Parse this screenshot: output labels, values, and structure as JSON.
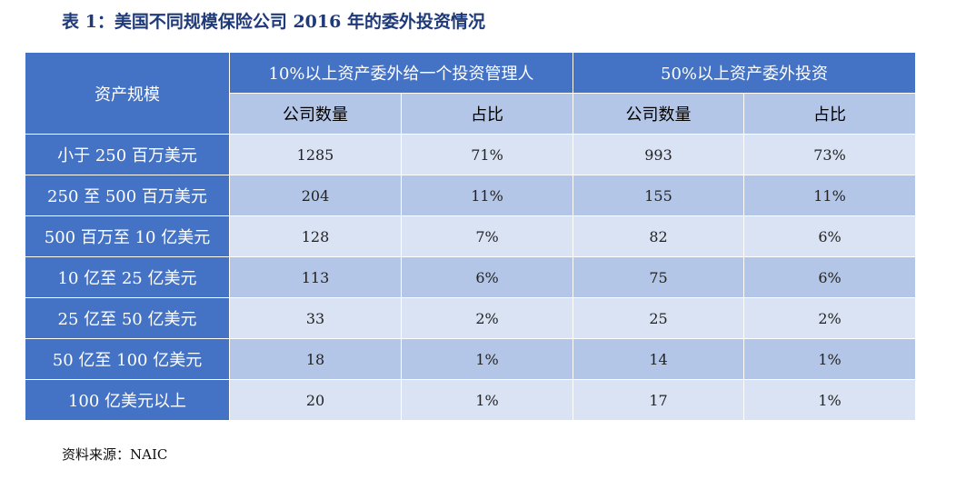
{
  "title": "表 1：美国不同规模保险公司 2016 年的委外投资情况",
  "table": {
    "row_header_label": "资产规模",
    "groups": [
      "10%以上资产委外给一个投资管理人",
      "50%以上资产委外投资"
    ],
    "subheaders": [
      "公司数量",
      "占比",
      "公司数量",
      "占比"
    ],
    "rows": [
      {
        "label": "小于 250 百万美元",
        "cells": [
          "1285",
          "71%",
          "993",
          "73%"
        ]
      },
      {
        "label": "250 至 500 百万美元",
        "cells": [
          "204",
          "11%",
          "155",
          "11%"
        ]
      },
      {
        "label": "500 百万至 10 亿美元",
        "cells": [
          "128",
          "7%",
          "82",
          "6%"
        ]
      },
      {
        "label": "10 亿至 25 亿美元",
        "cells": [
          "113",
          "6%",
          "75",
          "6%"
        ]
      },
      {
        "label": "25 亿至 50 亿美元",
        "cells": [
          "33",
          "2%",
          "25",
          "2%"
        ]
      },
      {
        "label": "50 亿至 100 亿美元",
        "cells": [
          "18",
          "1%",
          "14",
          "1%"
        ]
      },
      {
        "label": "100 亿美元以上",
        "cells": [
          "20",
          "1%",
          "17",
          "1%"
        ]
      }
    ]
  },
  "source": "资料来源：NAIC",
  "colors": {
    "header_dark": "#4472c4",
    "header_light": "#b4c6e7",
    "row_light": "#dae3f3",
    "title": "#1f3a78"
  }
}
